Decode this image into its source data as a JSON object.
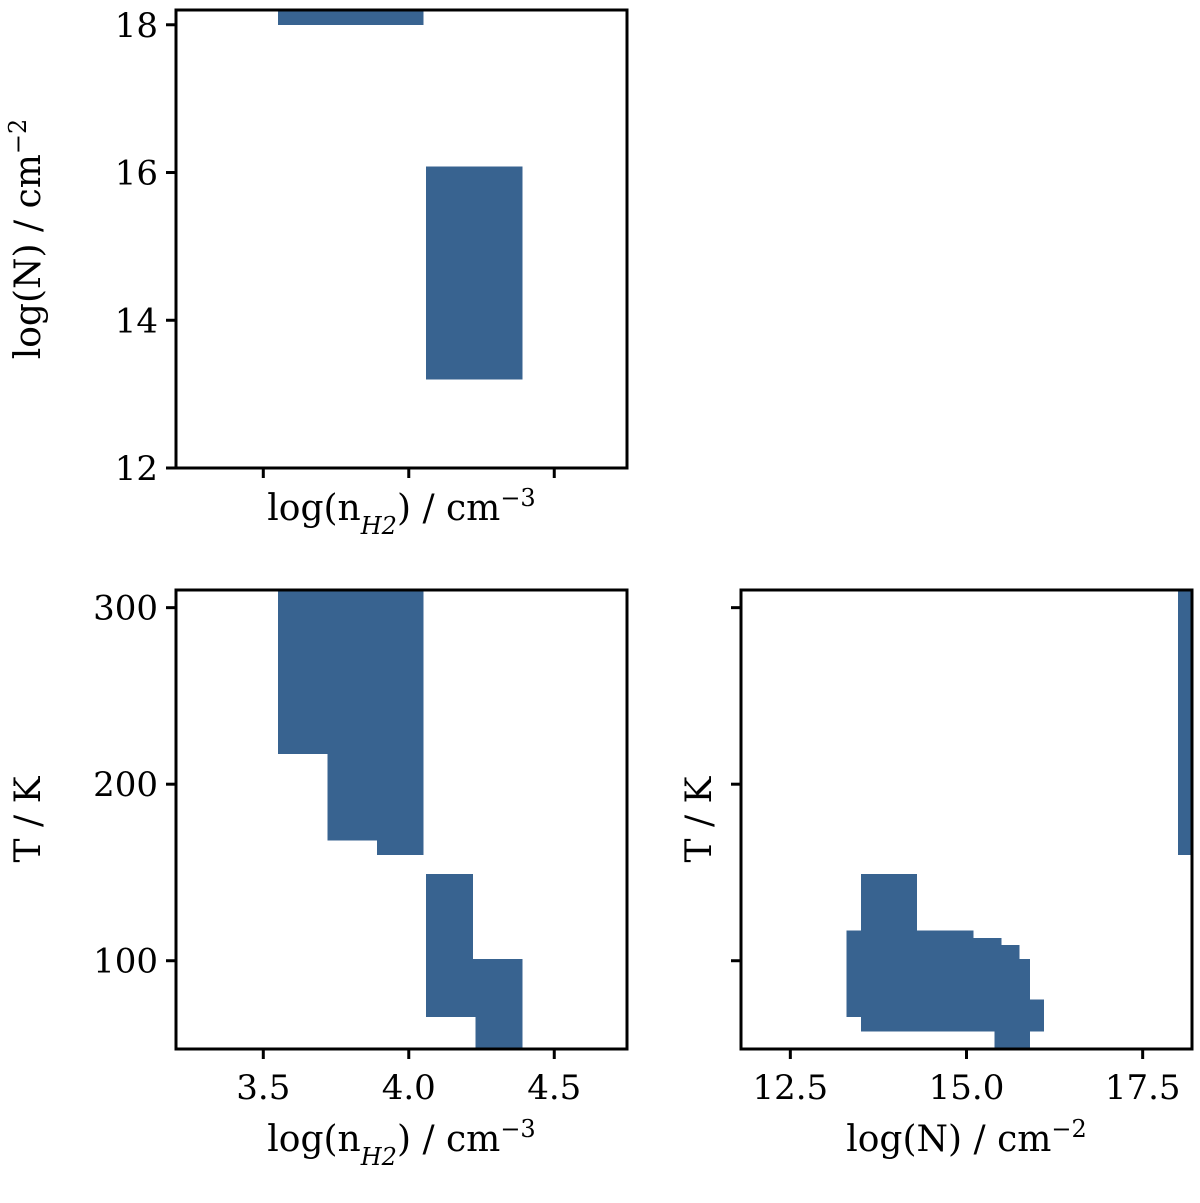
{
  "chart_data": [
    {
      "type": "heatmap",
      "panel": "top-left",
      "xlabel": {
        "base": "log(n",
        "sub": "H2",
        "tail": ") / cm",
        "sup": "−3"
      },
      "ylabel": {
        "base": "log(N) / cm",
        "sup": "−2"
      },
      "xlim": [
        3.2,
        4.75
      ],
      "ylim": [
        12,
        18.2
      ],
      "xticks": [
        3.5,
        4.0,
        4.5
      ],
      "xtick_labels": [],
      "yticks": [
        12,
        14,
        16,
        18
      ],
      "ytick_labels": [
        "12",
        "14",
        "16",
        "18"
      ],
      "color": "#386390",
      "regions": [
        {
          "x": [
            3.55,
            4.05
          ],
          "y": [
            18.0,
            18.2
          ]
        },
        {
          "x": [
            4.06,
            4.39
          ],
          "y": [
            13.2,
            16.08
          ]
        }
      ]
    },
    {
      "type": "heatmap",
      "panel": "bottom-left",
      "xlabel": {
        "base": "log(n",
        "sub": "H2",
        "tail": ") / cm",
        "sup": "−3"
      },
      "ylabel": {
        "base": "T / K",
        "sup": ""
      },
      "xlim": [
        3.2,
        4.75
      ],
      "ylim": [
        50,
        310
      ],
      "xticks": [
        3.5,
        4.0,
        4.5
      ],
      "xtick_labels": [
        "3.5",
        "4.0",
        "4.5"
      ],
      "yticks": [
        100,
        200,
        300
      ],
      "ytick_labels": [
        "100",
        "200",
        "300"
      ],
      "color": "#386390",
      "regions": [
        {
          "x": [
            3.55,
            4.05
          ],
          "y": [
            217,
            310
          ]
        },
        {
          "x": [
            3.72,
            4.05
          ],
          "y": [
            168,
            217
          ]
        },
        {
          "x": [
            3.89,
            4.05
          ],
          "y": [
            160,
            168
          ]
        },
        {
          "x": [
            4.06,
            4.22
          ],
          "y": [
            101,
            149
          ]
        },
        {
          "x": [
            4.06,
            4.39
          ],
          "y": [
            68,
            101
          ]
        },
        {
          "x": [
            4.23,
            4.39
          ],
          "y": [
            50,
            68
          ]
        }
      ]
    },
    {
      "type": "heatmap",
      "panel": "bottom-right",
      "xlabel": {
        "base": "log(N) / cm",
        "sup": "−2"
      },
      "ylabel": {
        "base": "T / K",
        "sup": ""
      },
      "xlim": [
        11.8,
        18.2
      ],
      "ylim": [
        50,
        310
      ],
      "xticks": [
        12.5,
        15.0,
        17.5
      ],
      "xtick_labels": [
        "12.5",
        "15.0",
        "17.5"
      ],
      "yticks": [
        100,
        200,
        300
      ],
      "ytick_labels": [],
      "color": "#386390",
      "regions": [
        {
          "x": [
            18.0,
            18.2
          ],
          "y": [
            160,
            310
          ]
        },
        {
          "x": [
            13.5,
            14.3
          ],
          "y": [
            117,
            149
          ]
        },
        {
          "x": [
            13.3,
            15.1
          ],
          "y": [
            101,
            117
          ]
        },
        {
          "x": [
            13.5,
            15.1
          ],
          "y": [
            68,
            101
          ]
        },
        {
          "x": [
            13.3,
            15.5
          ],
          "y": [
            68,
            101
          ]
        },
        {
          "x": [
            15.1,
            15.5
          ],
          "y": [
            109,
            113
          ]
        },
        {
          "x": [
            15.1,
            15.75
          ],
          "y": [
            101,
            109
          ]
        },
        {
          "x": [
            15.1,
            15.9
          ],
          "y": [
            78,
            101
          ]
        },
        {
          "x": [
            13.5,
            16.1
          ],
          "y": [
            60,
            78
          ]
        },
        {
          "x": [
            15.4,
            15.9
          ],
          "y": [
            50,
            60
          ]
        }
      ]
    }
  ]
}
